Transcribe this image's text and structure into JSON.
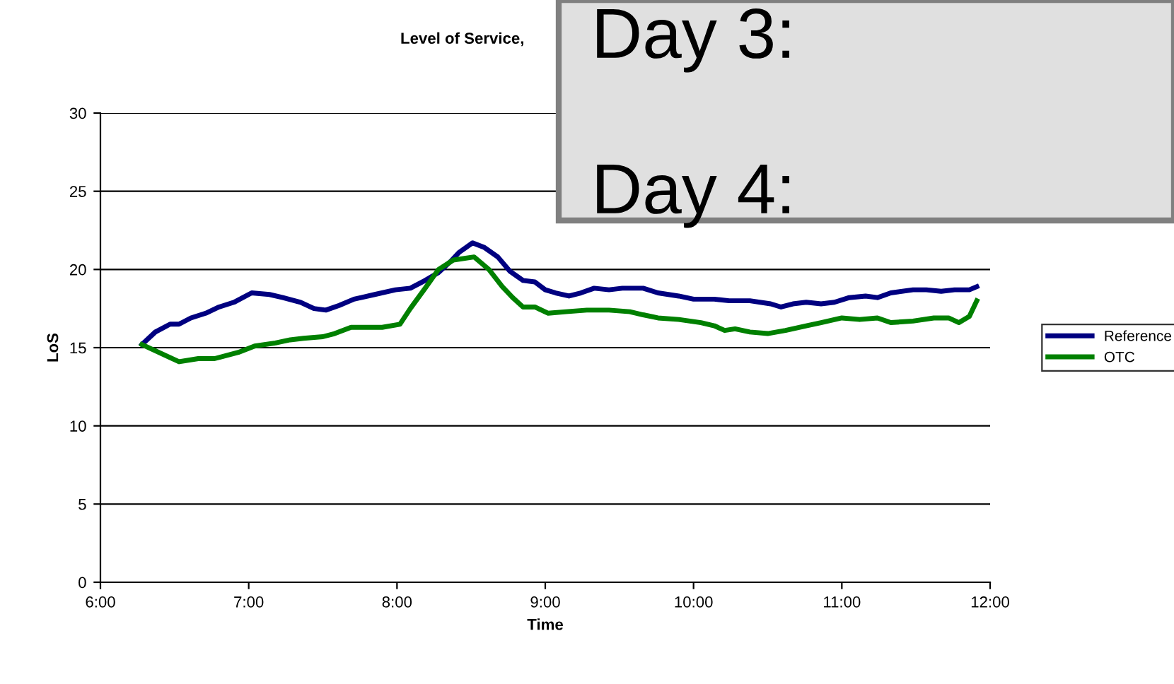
{
  "chart_data": {
    "type": "line",
    "title": "Level of Service,",
    "xlabel": "Time",
    "ylabel": "LoS",
    "xlim": [
      6,
      12
    ],
    "xticks": [
      {
        "value": 6,
        "label": "6:00"
      },
      {
        "value": 7,
        "label": "7:00"
      },
      {
        "value": 8,
        "label": "8:00"
      },
      {
        "value": 9,
        "label": "9:00"
      },
      {
        "value": 10,
        "label": "10:00"
      },
      {
        "value": 11,
        "label": "11:00"
      },
      {
        "value": 12,
        "label": "12:00"
      }
    ],
    "ylim": [
      0,
      30
    ],
    "yticks": [
      0,
      5,
      10,
      15,
      20,
      25,
      30
    ],
    "grid": "y",
    "legend": "right",
    "marker": "none",
    "line_style": "solid",
    "annotations": [
      "Day 3:",
      "Day 4:"
    ],
    "series": [
      {
        "name": "Reference",
        "color": "#000080",
        "x": [
          6.28,
          6.37,
          6.47,
          6.53,
          6.61,
          6.71,
          6.8,
          6.9,
          7.02,
          7.14,
          7.23,
          7.35,
          7.44,
          7.52,
          7.61,
          7.71,
          7.85,
          7.99,
          8.09,
          8.19,
          8.28,
          8.36,
          8.42,
          8.51,
          8.59,
          8.68,
          8.76,
          8.85,
          8.93,
          9.0,
          9.07,
          9.16,
          9.24,
          9.33,
          9.43,
          9.52,
          9.66,
          9.76,
          9.9,
          10.0,
          10.14,
          10.24,
          10.38,
          10.52,
          10.59,
          10.67,
          10.76,
          10.86,
          10.95,
          11.05,
          11.16,
          11.24,
          11.33,
          11.48,
          11.57,
          11.67,
          11.76,
          11.86,
          11.91
        ],
        "values": [
          15.2,
          16.0,
          16.5,
          16.5,
          16.9,
          17.2,
          17.6,
          17.9,
          18.5,
          18.4,
          18.2,
          17.9,
          17.5,
          17.4,
          17.7,
          18.1,
          18.4,
          18.7,
          18.8,
          19.3,
          19.8,
          20.5,
          21.1,
          21.7,
          21.4,
          20.8,
          19.9,
          19.3,
          19.2,
          18.7,
          18.5,
          18.3,
          18.5,
          18.8,
          18.7,
          18.8,
          18.8,
          18.5,
          18.3,
          18.1,
          18.1,
          18.0,
          18.0,
          17.8,
          17.6,
          17.8,
          17.9,
          17.8,
          17.9,
          18.2,
          18.3,
          18.2,
          18.5,
          18.7,
          18.7,
          18.6,
          18.7,
          18.7,
          18.9
        ]
      },
      {
        "name": "OTC",
        "color": "#008000",
        "x": [
          6.28,
          6.37,
          6.53,
          6.66,
          6.77,
          6.93,
          7.04,
          7.18,
          7.28,
          7.37,
          7.5,
          7.58,
          7.69,
          7.8,
          7.9,
          8.02,
          8.09,
          8.19,
          8.28,
          8.38,
          8.52,
          8.62,
          8.71,
          8.78,
          8.85,
          8.93,
          9.02,
          9.14,
          9.28,
          9.43,
          9.57,
          9.66,
          9.76,
          9.9,
          10.05,
          10.14,
          10.21,
          10.28,
          10.38,
          10.5,
          10.62,
          10.76,
          10.86,
          11.0,
          11.12,
          11.24,
          11.33,
          11.48,
          11.62,
          11.72,
          11.79,
          11.86,
          11.91
        ],
        "values": [
          15.2,
          14.8,
          14.1,
          14.3,
          14.3,
          14.7,
          15.1,
          15.3,
          15.5,
          15.6,
          15.7,
          15.9,
          16.3,
          16.3,
          16.3,
          16.5,
          17.5,
          18.8,
          20.0,
          20.6,
          20.8,
          20.0,
          18.9,
          18.2,
          17.6,
          17.6,
          17.2,
          17.3,
          17.4,
          17.4,
          17.3,
          17.1,
          16.9,
          16.8,
          16.6,
          16.4,
          16.1,
          16.2,
          16.0,
          15.9,
          16.1,
          16.4,
          16.6,
          16.9,
          16.8,
          16.9,
          16.6,
          16.7,
          16.9,
          16.9,
          16.6,
          17.0,
          18.0
        ]
      }
    ]
  }
}
